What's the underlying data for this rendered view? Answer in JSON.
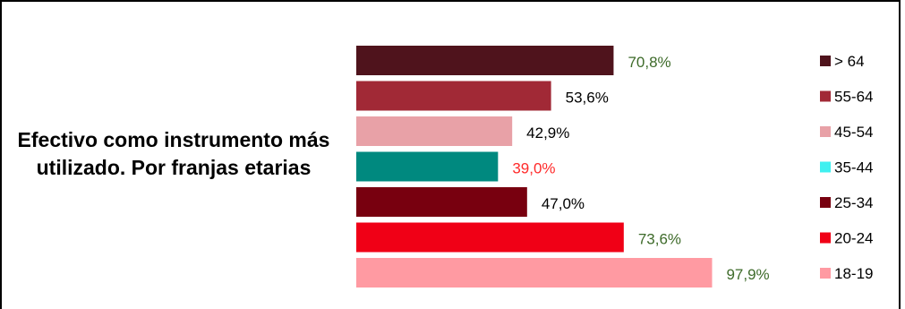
{
  "chart_data": {
    "type": "bar",
    "orientation": "horizontal",
    "title": "Efectivo como instrumento más utilizado. Por franjas etarias",
    "categories": [
      "> 64",
      "55-64",
      "45-54",
      "35-44",
      "25-34",
      "20-24",
      "18-19"
    ],
    "values": [
      70.8,
      53.6,
      42.9,
      39.0,
      47.0,
      73.6,
      97.9
    ],
    "value_labels": [
      "70,8%",
      "53,6%",
      "42,9%",
      "39,0%",
      "47,0%",
      "73,6%",
      "97,9%"
    ],
    "bar_colors": [
      "#4f131c",
      "#a12936",
      "#e8a1a7",
      "#00897f",
      "#78000f",
      "#f00016",
      "#ff9aa2"
    ],
    "legend_colors": [
      "#4f131c",
      "#a12936",
      "#e8a1a7",
      "#3ff0f0",
      "#78000f",
      "#f00016",
      "#ff9aa2"
    ],
    "label_colors": [
      "#3e6b2a",
      "#000000",
      "#000000",
      "#ff2a2a",
      "#000000",
      "#3e6b2a",
      "#3e6b2a"
    ],
    "legend_position": "right",
    "grid": false
  }
}
